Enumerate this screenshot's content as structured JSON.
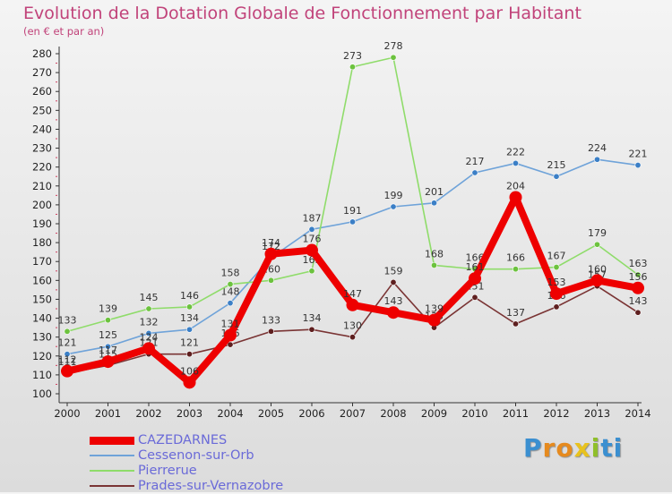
{
  "header": {
    "title": "Evolution de la Dotation Globale de Fonctionnement par Habitant",
    "subtitle": "(en € et par an)"
  },
  "brand": {
    "text": "Proxiti",
    "letters": [
      "P",
      "r",
      "o",
      "x",
      "i",
      "ti"
    ]
  },
  "chart_data": {
    "type": "line",
    "title": "Evolution de la Dotation Globale de Fonctionnement par Habitant",
    "subtitle": "(en € et par an)",
    "x": [
      "2000",
      "2001",
      "2002",
      "2003",
      "2004",
      "2005",
      "2006",
      "2007",
      "2008",
      "2009",
      "2010",
      "2011",
      "2012",
      "2013",
      "2014"
    ],
    "y_ticks": [
      "100",
      "110",
      "120",
      "130",
      "140",
      "150",
      "160",
      "170",
      "180",
      "190",
      "200",
      "210",
      "220",
      "230",
      "240",
      "250",
      "260",
      "270",
      "280"
    ],
    "ylim": [
      100,
      280
    ],
    "grid": false,
    "legend_position": "bottom-left",
    "series": [
      {
        "name": "Cessenon-sur-Orb",
        "color": "#6fa3d9",
        "marker": "#3b7fc6",
        "values": [
          121,
          125,
          132,
          134,
          148,
          172,
          187,
          191,
          199,
          201,
          217,
          222,
          215,
          224,
          221
        ],
        "labels": [
          "121",
          "125",
          "132",
          "134",
          "148",
          "172",
          "187",
          "191",
          "199",
          "201",
          "217",
          "222",
          "215",
          "224",
          "221"
        ]
      },
      {
        "name": "Pierrerue",
        "color": "#8fdc6a",
        "marker": "#6cc23e",
        "values": [
          133,
          139,
          145,
          146,
          158,
          160,
          165,
          273,
          278,
          168,
          166,
          166,
          167,
          179,
          163
        ],
        "labels": [
          "133",
          "139",
          "145",
          "146",
          "158",
          "160",
          "165",
          "273",
          "278",
          "168",
          "166",
          "166",
          "167",
          "179",
          "163"
        ]
      },
      {
        "name": "Prades-sur-Vernazobre",
        "color": "#7a3434",
        "marker": "#5e1f1f",
        "values": [
          111,
          115,
          121,
          121,
          126,
          133,
          134,
          130,
          159,
          135,
          151,
          137,
          146,
          157,
          143
        ],
        "labels": [
          "111",
          "115",
          "121",
          "121",
          "126",
          "133",
          "134",
          "130",
          "159",
          "135",
          "151",
          "137",
          "146",
          "157",
          "143"
        ]
      },
      {
        "name": "CAZEDARNES",
        "color": "#ee0000",
        "marker": "#ee0000",
        "values": [
          112,
          117,
          124,
          106,
          131,
          174,
          176,
          147,
          143,
          139,
          161,
          204,
          153,
          160,
          156
        ],
        "labels": [
          "112",
          "117",
          "124",
          "106",
          "131",
          "174",
          "176",
          "147",
          "143",
          "139",
          "161",
          "204",
          "153",
          "160",
          "156"
        ]
      }
    ]
  },
  "legend": {
    "items": [
      {
        "label": "CAZEDARNES",
        "color": "#ee0000",
        "weight": 9
      },
      {
        "label": "Cessenon-sur-Orb",
        "color": "#6fa3d9",
        "weight": 2
      },
      {
        "label": "Pierrerue",
        "color": "#8fdc6a",
        "weight": 2
      },
      {
        "label": "Prades-sur-Vernazobre",
        "color": "#7a3434",
        "weight": 2
      }
    ]
  }
}
